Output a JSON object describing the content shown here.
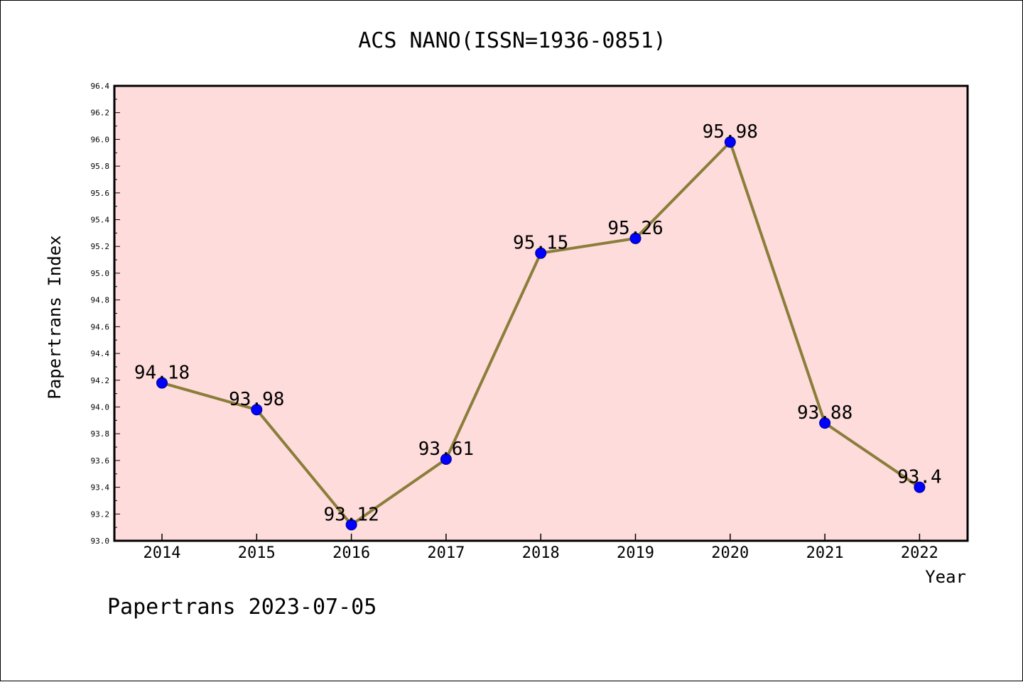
{
  "chart_data": {
    "type": "line",
    "title": "ACS NANO(ISSN=1936-0851)",
    "xlabel": "Year",
    "ylabel": "Papertrans Index",
    "categories": [
      "2014",
      "2015",
      "2016",
      "2017",
      "2018",
      "2019",
      "2020",
      "2021",
      "2022"
    ],
    "series": [
      {
        "values": [
          94.18,
          93.98,
          93.12,
          93.61,
          95.15,
          95.26,
          95.98,
          93.88,
          93.4
        ],
        "data_labels": [
          "94.18",
          "93.98",
          "93.12",
          "93.61",
          "95.15",
          "95.26",
          "95.98",
          "93.88",
          "93.4"
        ],
        "line_color": "#8B7D3A",
        "marker_color": "#0000FF"
      }
    ],
    "ylim": [
      93.0,
      96.4
    ],
    "y_ticks": [
      "93.0",
      "93.2",
      "93.4",
      "93.6",
      "93.8",
      "94.0",
      "94.2",
      "94.4",
      "94.6",
      "94.8",
      "95.0",
      "95.2",
      "95.4",
      "95.6",
      "95.8",
      "96.0",
      "96.2",
      "96.4"
    ],
    "plot_background": "#FDDCDB",
    "grid": false,
    "legend": "none"
  },
  "footer": "Papertrans 2023-07-05"
}
